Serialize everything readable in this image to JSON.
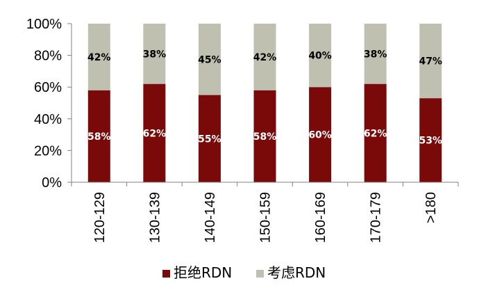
{
  "chart_data": {
    "type": "bar",
    "stacked": true,
    "percent": true,
    "categories": [
      "120-129",
      "130-139",
      "140-149",
      "150-159",
      "160-169",
      "170-179",
      ">180"
    ],
    "series": [
      {
        "name": "拒绝RDN",
        "color": "#7a0a0a",
        "label_color": "#ffffff",
        "values": [
          58,
          62,
          55,
          58,
          60,
          62,
          53
        ],
        "labels": [
          "58%",
          "62%",
          "55%",
          "58%",
          "60%",
          "62%",
          "53%"
        ]
      },
      {
        "name": "考虑RDN",
        "color": "#c0c0b0",
        "label_color": "#000000",
        "values": [
          42,
          38,
          45,
          42,
          40,
          38,
          47
        ],
        "labels": [
          "42%",
          "38%",
          "45%",
          "42%",
          "40%",
          "38%",
          "47%"
        ]
      }
    ],
    "yticks": [
      "0%",
      "20%",
      "40%",
      "60%",
      "80%",
      "100%"
    ],
    "ylim": [
      0,
      100
    ],
    "grid": false,
    "legend_position": "bottom",
    "xlabel_rotation": "vertical"
  }
}
